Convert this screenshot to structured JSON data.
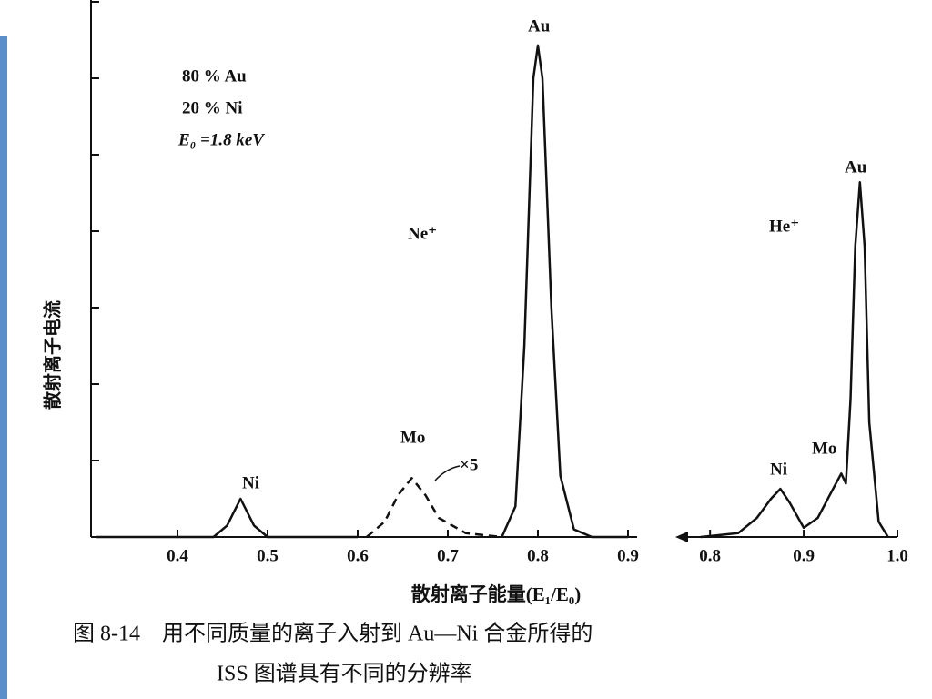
{
  "chart_data": [
    {
      "type": "line",
      "x_label": "散射离子能量(E₁/E₀)",
      "y_label": "散射离子电流",
      "annotations": [
        "80 % Au",
        "20 % Ni",
        "E₀ =1.8 keV",
        "Ne⁺",
        "Au",
        "Mo",
        "×5",
        "Ni"
      ],
      "xlim": [
        0.3,
        0.9
      ],
      "xticks": [
        0.4,
        0.5,
        0.6,
        0.7,
        0.8,
        0.9
      ],
      "ylim": [
        0,
        7
      ],
      "yticks": [
        1,
        2,
        3,
        4,
        5,
        6,
        7
      ],
      "grid": false,
      "color": "#111111",
      "x": [
        0.31,
        0.44,
        0.455,
        0.47,
        0.485,
        0.5,
        0.6,
        0.61,
        0.63,
        0.645,
        0.66,
        0.675,
        0.69,
        0.72,
        0.76,
        0.775,
        0.785,
        0.795,
        0.8,
        0.805,
        0.815,
        0.825,
        0.84,
        0.86,
        0.9
      ],
      "series": [
        {
          "values": [
            0,
            0,
            0.15,
            0.5,
            0.15,
            0,
            0,
            null,
            null,
            null,
            null,
            null,
            null,
            null,
            0,
            0.4,
            2.5,
            6.0,
            6.43,
            6.0,
            3.0,
            0.8,
            0.1,
            0,
            0
          ],
          "dashed": false
        },
        {
          "values": [
            null,
            null,
            null,
            null,
            null,
            null,
            null,
            0,
            0.2,
            0.55,
            0.77,
            0.55,
            0.25,
            0.05,
            0,
            null,
            null,
            null,
            null,
            null,
            null,
            null,
            null,
            null,
            null
          ],
          "dashed": true
        }
      ]
    },
    {
      "type": "line",
      "annotations": [
        "He⁺",
        "Au",
        "Mo",
        "Ni"
      ],
      "xlim": [
        0.76,
        1.0
      ],
      "xticks": [
        0.8,
        0.9,
        {
          "value": 1,
          "label": "1.0"
        }
      ],
      "ylim": [
        0,
        7
      ],
      "color": "#111111",
      "x": [
        0.79,
        0.83,
        0.85,
        0.865,
        0.875,
        0.885,
        0.9,
        0.915,
        0.93,
        0.94,
        0.945,
        0.95,
        0.955,
        0.96,
        0.965,
        0.97,
        0.98,
        0.99
      ],
      "series": [
        {
          "values": [
            0,
            0.05,
            0.25,
            0.5,
            0.63,
            0.45,
            0.12,
            0.25,
            0.6,
            0.83,
            0.7,
            1.8,
            3.8,
            4.64,
            3.8,
            1.5,
            0.2,
            0
          ],
          "dashed": false
        }
      ]
    }
  ],
  "caption": [
    "图 8-14　用不同质量的离子入射到 Au—Ni 合金所得的",
    "ISS 图谱具有不同的分辨率"
  ]
}
